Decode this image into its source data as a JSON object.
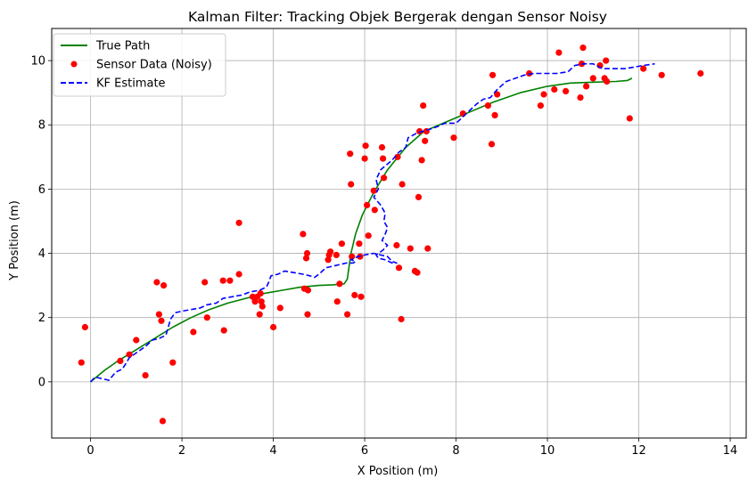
{
  "chart_data": {
    "type": "line",
    "title": "Kalman Filter: Tracking Objek Bergerak dengan Sensor Noisy",
    "xlabel": "X Position (m)",
    "ylabel": "Y Position (m)",
    "xlim": [
      -0.85,
      14.35
    ],
    "ylim": [
      -1.75,
      11.0
    ],
    "xticks": [
      0,
      2,
      4,
      6,
      8,
      10,
      12,
      14
    ],
    "yticks": [
      0,
      2,
      4,
      6,
      8,
      10
    ],
    "grid": true,
    "legend": "top-left",
    "series": [
      {
        "name": "True Path",
        "kind": "line",
        "color": "#008000",
        "dash": "solid",
        "points": [
          [
            0,
            0
          ],
          [
            0.3,
            0.35
          ],
          [
            0.6,
            0.65
          ],
          [
            1,
            1.0
          ],
          [
            1.4,
            1.35
          ],
          [
            1.8,
            1.7
          ],
          [
            2.2,
            2.0
          ],
          [
            2.6,
            2.25
          ],
          [
            3,
            2.45
          ],
          [
            3.4,
            2.6
          ],
          [
            3.8,
            2.75
          ],
          [
            4.2,
            2.85
          ],
          [
            4.6,
            2.95
          ],
          [
            5,
            3.0
          ],
          [
            5.3,
            3.02
          ],
          [
            5.55,
            3.05
          ],
          [
            5.62,
            3.2
          ],
          [
            5.66,
            3.6
          ],
          [
            5.7,
            4.0
          ],
          [
            5.8,
            4.6
          ],
          [
            5.95,
            5.2
          ],
          [
            6.2,
            5.9
          ],
          [
            6.5,
            6.6
          ],
          [
            6.9,
            7.3
          ],
          [
            7.3,
            7.8
          ],
          [
            7.8,
            8.1
          ],
          [
            8.3,
            8.4
          ],
          [
            8.8,
            8.7
          ],
          [
            9.4,
            9.0
          ],
          [
            10,
            9.2
          ],
          [
            10.5,
            9.3
          ],
          [
            11,
            9.33
          ],
          [
            11.5,
            9.35
          ],
          [
            11.75,
            9.38
          ],
          [
            11.85,
            9.45
          ]
        ]
      },
      {
        "name": "Sensor Data (Noisy)",
        "kind": "scatter",
        "color": "#ff0000",
        "points": [
          [
            -0.2,
            0.6
          ],
          [
            -0.12,
            1.7
          ],
          [
            0.65,
            0.65
          ],
          [
            0.85,
            0.85
          ],
          [
            1.0,
            1.3
          ],
          [
            1.2,
            0.2
          ],
          [
            1.45,
            3.1
          ],
          [
            1.5,
            2.1
          ],
          [
            1.55,
            1.9
          ],
          [
            1.6,
            3.0
          ],
          [
            1.58,
            -1.22
          ],
          [
            1.8,
            0.6
          ],
          [
            2.25,
            1.55
          ],
          [
            2.5,
            3.1
          ],
          [
            2.55,
            2.0
          ],
          [
            2.9,
            3.15
          ],
          [
            2.92,
            1.6
          ],
          [
            3.05,
            3.15
          ],
          [
            3.25,
            3.35
          ],
          [
            3.25,
            4.95
          ],
          [
            3.55,
            2.65
          ],
          [
            3.6,
            2.5
          ],
          [
            3.65,
            2.65
          ],
          [
            3.7,
            2.1
          ],
          [
            3.72,
            2.75
          ],
          [
            3.74,
            2.5
          ],
          [
            3.76,
            2.35
          ],
          [
            4.0,
            1.7
          ],
          [
            4.15,
            2.3
          ],
          [
            4.65,
            4.6
          ],
          [
            4.68,
            2.9
          ],
          [
            4.72,
            3.85
          ],
          [
            4.74,
            4.0
          ],
          [
            4.76,
            2.85
          ],
          [
            4.75,
            2.1
          ],
          [
            5.2,
            3.8
          ],
          [
            5.22,
            3.95
          ],
          [
            5.25,
            4.05
          ],
          [
            5.4,
            2.5
          ],
          [
            5.38,
            3.95
          ],
          [
            5.45,
            3.05
          ],
          [
            5.5,
            4.3
          ],
          [
            5.62,
            2.1
          ],
          [
            5.68,
            7.1
          ],
          [
            5.7,
            6.15
          ],
          [
            5.72,
            3.9
          ],
          [
            5.78,
            2.7
          ],
          [
            5.88,
            4.3
          ],
          [
            5.9,
            3.9
          ],
          [
            5.92,
            2.65
          ],
          [
            6.0,
            6.95
          ],
          [
            6.02,
            7.35
          ],
          [
            6.05,
            5.5
          ],
          [
            6.08,
            4.55
          ],
          [
            6.2,
            5.95
          ],
          [
            6.22,
            5.35
          ],
          [
            6.38,
            7.3
          ],
          [
            6.4,
            6.95
          ],
          [
            6.42,
            6.35
          ],
          [
            6.7,
            4.25
          ],
          [
            6.72,
            7.0
          ],
          [
            6.75,
            3.55
          ],
          [
            6.8,
            1.95
          ],
          [
            6.82,
            6.15
          ],
          [
            7.0,
            4.15
          ],
          [
            7.1,
            3.45
          ],
          [
            7.15,
            3.4
          ],
          [
            7.18,
            5.75
          ],
          [
            7.2,
            7.8
          ],
          [
            7.25,
            6.9
          ],
          [
            7.28,
            8.6
          ],
          [
            7.32,
            7.5
          ],
          [
            7.38,
            4.15
          ],
          [
            7.35,
            7.8
          ],
          [
            7.95,
            7.6
          ],
          [
            8.15,
            8.35
          ],
          [
            8.7,
            8.6
          ],
          [
            8.78,
            7.4
          ],
          [
            8.8,
            9.55
          ],
          [
            8.85,
            8.3
          ],
          [
            8.9,
            8.95
          ],
          [
            9.6,
            9.6
          ],
          [
            9.85,
            8.6
          ],
          [
            9.92,
            8.95
          ],
          [
            10.15,
            9.1
          ],
          [
            10.25,
            10.25
          ],
          [
            10.4,
            9.05
          ],
          [
            10.72,
            8.85
          ],
          [
            10.75,
            9.9
          ],
          [
            10.78,
            10.4
          ],
          [
            10.85,
            9.2
          ],
          [
            11.0,
            9.45
          ],
          [
            11.15,
            9.85
          ],
          [
            11.25,
            9.45
          ],
          [
            11.3,
            9.35
          ],
          [
            11.28,
            10.0
          ],
          [
            11.8,
            8.2
          ],
          [
            12.1,
            9.75
          ],
          [
            12.5,
            9.55
          ],
          [
            13.35,
            9.6
          ]
        ]
      },
      {
        "name": "KF Estimate",
        "kind": "line",
        "color": "#0000ff",
        "dash": "dashed",
        "points": [
          [
            0,
            0
          ],
          [
            0.1,
            0.15
          ],
          [
            0.25,
            0.1
          ],
          [
            0.4,
            0.05
          ],
          [
            0.55,
            0.3
          ],
          [
            0.7,
            0.4
          ],
          [
            0.85,
            0.75
          ],
          [
            1.0,
            0.9
          ],
          [
            1.2,
            1.1
          ],
          [
            1.35,
            1.3
          ],
          [
            1.5,
            1.35
          ],
          [
            1.65,
            1.45
          ],
          [
            1.7,
            1.7
          ],
          [
            1.75,
            1.95
          ],
          [
            1.85,
            2.15
          ],
          [
            2.0,
            2.2
          ],
          [
            2.2,
            2.25
          ],
          [
            2.4,
            2.3
          ],
          [
            2.55,
            2.4
          ],
          [
            2.75,
            2.45
          ],
          [
            2.9,
            2.6
          ],
          [
            3.1,
            2.65
          ],
          [
            3.3,
            2.7
          ],
          [
            3.5,
            2.8
          ],
          [
            3.7,
            2.85
          ],
          [
            3.85,
            2.95
          ],
          [
            3.9,
            3.1
          ],
          [
            3.95,
            3.3
          ],
          [
            4.1,
            3.35
          ],
          [
            4.25,
            3.45
          ],
          [
            4.45,
            3.4
          ],
          [
            4.65,
            3.35
          ],
          [
            4.8,
            3.3
          ],
          [
            4.9,
            3.25
          ],
          [
            5.0,
            3.35
          ],
          [
            5.15,
            3.55
          ],
          [
            5.3,
            3.6
          ],
          [
            5.45,
            3.65
          ],
          [
            5.6,
            3.7
          ],
          [
            5.75,
            3.7
          ],
          [
            5.8,
            3.75
          ],
          [
            5.7,
            3.8
          ],
          [
            5.85,
            3.9
          ],
          [
            6.0,
            3.95
          ],
          [
            6.2,
            4.0
          ],
          [
            6.35,
            3.95
          ],
          [
            6.5,
            3.9
          ],
          [
            6.6,
            3.75
          ],
          [
            6.7,
            3.7
          ],
          [
            6.6,
            3.7
          ],
          [
            6.45,
            3.8
          ],
          [
            6.3,
            3.85
          ],
          [
            6.25,
            3.95
          ],
          [
            6.4,
            4.1
          ],
          [
            6.5,
            4.25
          ],
          [
            6.38,
            4.4
          ],
          [
            6.45,
            4.6
          ],
          [
            6.5,
            4.8
          ],
          [
            6.42,
            5.0
          ],
          [
            6.45,
            5.25
          ],
          [
            6.35,
            5.5
          ],
          [
            6.2,
            5.75
          ],
          [
            6.3,
            6.0
          ],
          [
            6.25,
            6.3
          ],
          [
            6.35,
            6.6
          ],
          [
            6.6,
            6.9
          ],
          [
            6.75,
            7.15
          ],
          [
            6.9,
            7.3
          ],
          [
            6.95,
            7.6
          ],
          [
            7.15,
            7.75
          ],
          [
            7.4,
            7.85
          ],
          [
            7.6,
            7.95
          ],
          [
            7.75,
            8.05
          ],
          [
            8.0,
            8.05
          ],
          [
            8.15,
            8.25
          ],
          [
            8.3,
            8.45
          ],
          [
            8.45,
            8.65
          ],
          [
            8.6,
            8.8
          ],
          [
            8.75,
            8.85
          ],
          [
            8.9,
            9.1
          ],
          [
            9.1,
            9.35
          ],
          [
            9.3,
            9.45
          ],
          [
            9.5,
            9.55
          ],
          [
            9.7,
            9.6
          ],
          [
            9.95,
            9.6
          ],
          [
            10.2,
            9.6
          ],
          [
            10.45,
            9.65
          ],
          [
            10.6,
            9.85
          ],
          [
            10.8,
            9.9
          ],
          [
            11.0,
            9.9
          ],
          [
            11.2,
            9.75
          ],
          [
            11.45,
            9.75
          ],
          [
            11.7,
            9.75
          ],
          [
            11.9,
            9.8
          ],
          [
            12.1,
            9.85
          ],
          [
            12.35,
            9.9
          ]
        ]
      }
    ]
  }
}
